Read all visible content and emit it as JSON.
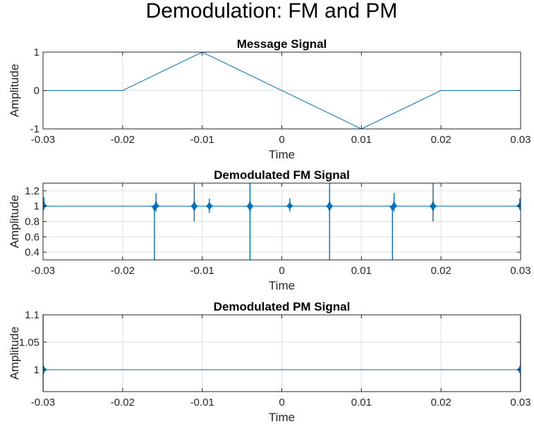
{
  "figure_title": "Demodulation: FM and PM",
  "chart_data": [
    {
      "type": "line",
      "title": "Message Signal",
      "xlabel": "Time",
      "ylabel": "Amplitude",
      "xlim": [
        -0.03,
        0.03
      ],
      "ylim": [
        -1,
        1
      ],
      "xticks": [
        -0.03,
        -0.02,
        -0.01,
        0,
        0.01,
        0.02,
        0.03
      ],
      "xtick_labels": [
        "-0.03",
        "-0.02",
        "-0.01",
        "0",
        "0.01",
        "0.02",
        "0.03"
      ],
      "yticks": [
        -1,
        0,
        1
      ],
      "ytick_labels": [
        "-1",
        "0",
        "1"
      ],
      "grid": true,
      "color": "#0072BD",
      "series": [
        {
          "x": [
            -0.03,
            -0.02,
            -0.01,
            0.01,
            0.02,
            0.03
          ],
          "y": [
            0,
            0,
            1,
            -1,
            0,
            0
          ]
        }
      ]
    },
    {
      "type": "line",
      "title": "Demodulated FM Signal",
      "xlabel": "Time",
      "ylabel": "Amplitude",
      "xlim": [
        -0.03,
        0.03
      ],
      "ylim": [
        0.3,
        1.3
      ],
      "xticks": [
        -0.03,
        -0.02,
        -0.01,
        0,
        0.01,
        0.02,
        0.03
      ],
      "xtick_labels": [
        "-0.03",
        "-0.02",
        "-0.01",
        "0",
        "0.01",
        "0.02",
        "0.03"
      ],
      "yticks": [
        0.4,
        0.6,
        0.8,
        1,
        1.2
      ],
      "ytick_labels": [
        "0.4",
        "0.6",
        "0.8",
        "1",
        "1.2"
      ],
      "grid": true,
      "color": "#0072BD",
      "baseline": 1,
      "spikes": [
        {
          "x": -0.0299,
          "min": 0.95,
          "max": 1.12
        },
        {
          "x": -0.016,
          "min": 0.3,
          "max": 1.0
        },
        {
          "x": -0.0158,
          "min": 0.93,
          "max": 1.17
        },
        {
          "x": -0.011,
          "min": 0.8,
          "max": 1.3
        },
        {
          "x": -0.0091,
          "min": 0.91,
          "max": 1.1
        },
        {
          "x": -0.004,
          "min": 0.3,
          "max": 1.3
        },
        {
          "x": 0.001,
          "min": 0.93,
          "max": 1.1
        },
        {
          "x": 0.006,
          "min": 0.3,
          "max": 1.3
        },
        {
          "x": 0.0139,
          "min": 0.3,
          "max": 1.0
        },
        {
          "x": 0.0141,
          "min": 0.93,
          "max": 1.17
        },
        {
          "x": 0.019,
          "min": 0.8,
          "max": 1.3
        },
        {
          "x": 0.0299,
          "min": 0.95,
          "max": 1.1
        }
      ]
    },
    {
      "type": "line",
      "title": "Demodulated PM Signal",
      "xlabel": "Time",
      "ylabel": "Amplitude",
      "xlim": [
        -0.03,
        0.03
      ],
      "ylim": [
        0.96,
        1.1
      ],
      "xticks": [
        -0.03,
        -0.02,
        -0.01,
        0,
        0.01,
        0.02,
        0.03
      ],
      "xtick_labels": [
        "-0.03",
        "-0.02",
        "-0.01",
        "0",
        "0.01",
        "0.02",
        "0.03"
      ],
      "yticks": [
        1,
        1.05,
        1.1
      ],
      "ytick_labels": [
        "1",
        "1.05",
        "1.1"
      ],
      "grid": true,
      "color": "#0072BD",
      "baseline": 1,
      "spikes": [
        {
          "x": -0.02999,
          "min": 0.96,
          "max": 1.1
        },
        {
          "x": 0.02999,
          "min": 0.96,
          "max": 1.1
        }
      ]
    }
  ]
}
